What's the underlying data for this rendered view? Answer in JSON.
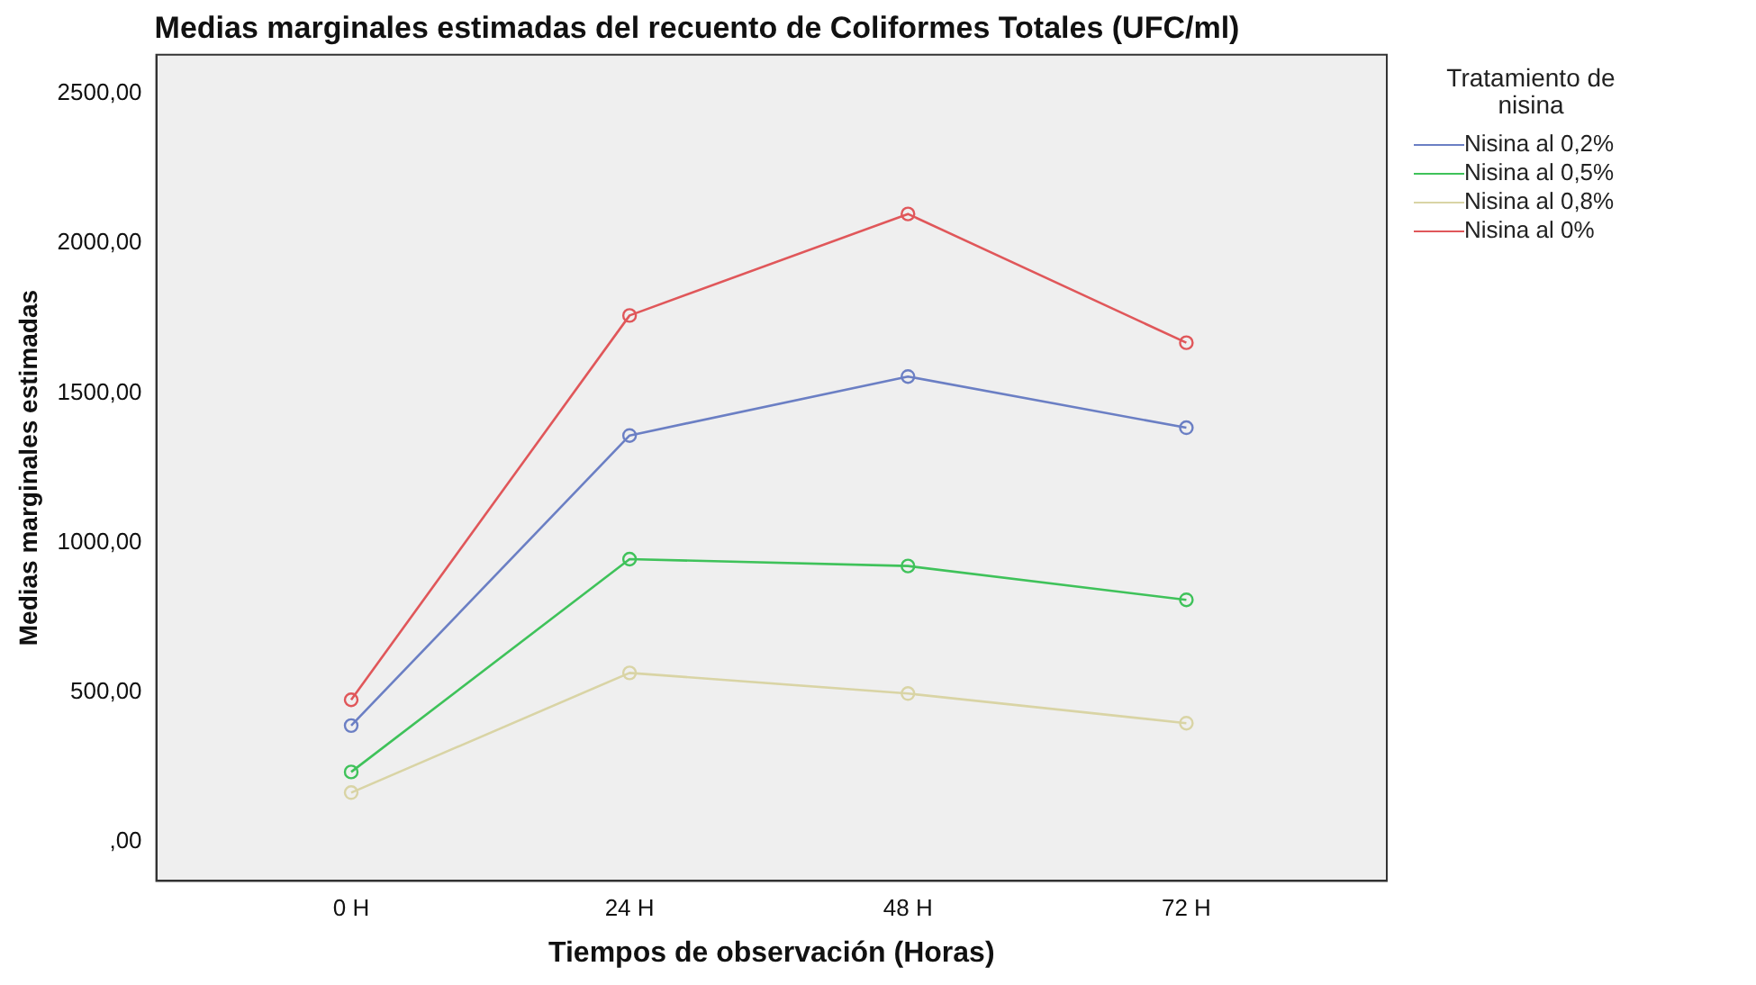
{
  "chart_data": {
    "type": "line",
    "title": "Medias marginales estimadas del recuento de Coliformes Totales (UFC/ml)",
    "xlabel": "Tiempos de observación (Horas)",
    "ylabel": "Medias marginales estimadas",
    "legend_title": "Tratamiento de nisina",
    "categories": [
      "0 H",
      "24 H",
      "48 H",
      "72 H"
    ],
    "series": [
      {
        "name": "Nisina al 0,2%",
        "color": "#6b7fc4",
        "values": [
          389,
          1358,
          1555,
          1384
        ]
      },
      {
        "name": "Nisina al 0,5%",
        "color": "#3fc25a",
        "values": [
          234,
          945,
          922,
          809
        ]
      },
      {
        "name": "Nisina al 0,8%",
        "color": "#d9d4a5",
        "values": [
          165,
          565,
          496,
          397
        ]
      },
      {
        "name": "Nisina al 0%",
        "color": "#e0575a",
        "values": [
          475,
          1759,
          2098,
          1668
        ]
      }
    ],
    "ylim": [
      -130,
      2630
    ],
    "yticks": [
      {
        "value": 0,
        "label": ",00"
      },
      {
        "value": 500,
        "label": "500,00"
      },
      {
        "value": 1000,
        "label": "1000,00"
      },
      {
        "value": 1500,
        "label": "1500,00"
      },
      {
        "value": 2000,
        "label": "2000,00"
      },
      {
        "value": 2500,
        "label": "2500,00"
      }
    ],
    "grid": false,
    "legend": "top right",
    "marker": "circle",
    "line_style": "solid"
  }
}
